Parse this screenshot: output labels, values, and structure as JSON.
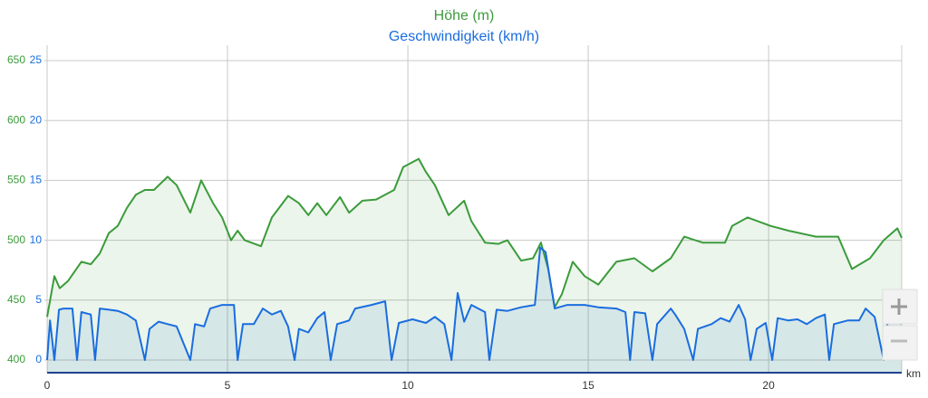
{
  "chart_data": {
    "type": "line",
    "x_label": "km",
    "xlim": [
      0,
      23.69
    ],
    "xticks": [
      0,
      5,
      10,
      15,
      20
    ],
    "ylim": [
      400,
      650
    ],
    "yticks": [
      400,
      450,
      500,
      550,
      600,
      650
    ],
    "y2lim": [
      0,
      25
    ],
    "y2ticks": [
      0,
      5,
      10,
      15,
      20,
      25
    ],
    "grid": true,
    "series": [
      {
        "name": "Höhe (m)",
        "color": "#3b9b3b",
        "axis": "y",
        "x": [
          0,
          0.2,
          0.35,
          0.58,
          0.95,
          1.21,
          1.46,
          1.71,
          1.96,
          2.21,
          2.46,
          2.71,
          2.96,
          3.34,
          3.59,
          3.97,
          4.27,
          4.6,
          4.85,
          5.1,
          5.28,
          5.48,
          5.93,
          6.23,
          6.68,
          6.98,
          7.24,
          7.49,
          7.74,
          8.12,
          8.37,
          8.74,
          9.12,
          9.62,
          9.87,
          10.3,
          10.5,
          10.75,
          11.13,
          11.56,
          11.76,
          12.14,
          12.51,
          12.76,
          13.14,
          13.47,
          13.69,
          13.89,
          14.07,
          14.27,
          14.57,
          14.9,
          15.28,
          15.78,
          16.28,
          16.78,
          17.29,
          17.66,
          18.17,
          18.79,
          18.99,
          19.42,
          20.05,
          20.55,
          21.31,
          21.93,
          22.31,
          22.81,
          23.19,
          23.57,
          23.69
        ],
        "values": [
          436,
          470,
          460,
          466,
          482,
          480,
          489,
          506,
          512,
          527,
          538,
          542,
          542,
          553,
          546,
          523,
          550,
          531,
          519,
          500,
          508,
          500,
          495,
          519,
          537,
          531,
          521,
          531,
          521,
          536,
          523,
          533,
          534,
          542,
          561,
          568,
          557,
          546,
          521,
          533,
          516,
          498,
          497,
          500,
          483,
          485,
          498,
          476,
          444,
          455,
          482,
          470,
          463,
          482,
          485,
          474,
          485,
          503,
          498,
          498,
          512,
          519,
          512,
          508,
          503,
          503,
          476,
          485,
          500,
          510,
          502
        ]
      },
      {
        "name": "Geschwindigkeit (km/h)",
        "color": "#1a6ddf",
        "axis": "y2",
        "x": [
          0,
          0.08,
          0.2,
          0.33,
          0.45,
          0.7,
          0.83,
          0.95,
          1.21,
          1.33,
          1.46,
          1.71,
          1.96,
          2.21,
          2.46,
          2.71,
          2.84,
          3.09,
          3.34,
          3.59,
          3.97,
          4.1,
          4.35,
          4.52,
          4.85,
          5.18,
          5.28,
          5.43,
          5.73,
          5.98,
          6.23,
          6.48,
          6.68,
          6.86,
          6.98,
          7.24,
          7.49,
          7.69,
          7.86,
          8.04,
          8.37,
          8.54,
          8.99,
          9.37,
          9.55,
          9.75,
          10.13,
          10.5,
          10.75,
          11.01,
          11.21,
          11.38,
          11.56,
          11.76,
          12.14,
          12.26,
          12.46,
          12.76,
          13.14,
          13.52,
          13.67,
          13.82,
          14.07,
          14.42,
          14.9,
          15.28,
          15.78,
          16.03,
          16.16,
          16.28,
          16.58,
          16.78,
          16.91,
          17.29,
          17.41,
          17.66,
          17.91,
          18.04,
          18.42,
          18.67,
          18.92,
          19.17,
          19.35,
          19.5,
          19.67,
          19.92,
          20.1,
          20.25,
          20.55,
          20.8,
          21.06,
          21.31,
          21.56,
          21.68,
          21.81,
          22.19,
          22.51,
          22.69,
          22.94,
          23.19,
          23.32,
          23.44,
          23.57,
          23.69
        ],
        "values": [
          0,
          3.3,
          0,
          4.2,
          4.3,
          4.3,
          0,
          4.0,
          3.8,
          0,
          4.3,
          4.2,
          4.1,
          3.8,
          3.3,
          0,
          2.6,
          3.2,
          3.0,
          2.8,
          0,
          3.0,
          2.8,
          4.3,
          4.6,
          4.6,
          0,
          3.0,
          3.0,
          4.3,
          3.8,
          4.1,
          2.8,
          0,
          2.6,
          2.3,
          3.5,
          4.0,
          0,
          3.0,
          3.3,
          4.3,
          4.6,
          4.9,
          0,
          3.1,
          3.4,
          3.1,
          3.6,
          3.0,
          0,
          5.6,
          3.2,
          4.6,
          4.0,
          0,
          4.2,
          4.1,
          4.4,
          4.6,
          9.4,
          9.0,
          4.3,
          4.6,
          4.6,
          4.4,
          4.3,
          4.0,
          0,
          4.0,
          3.9,
          0,
          3.0,
          4.3,
          3.8,
          2.6,
          0,
          2.6,
          3.0,
          3.5,
          3.2,
          4.6,
          3.4,
          0,
          2.6,
          3.1,
          0,
          3.5,
          3.3,
          3.4,
          3.0,
          3.5,
          3.8,
          0,
          3.0,
          3.3,
          3.3,
          4.3,
          3.6,
          0,
          3.8,
          5.2,
          3.2,
          3.0
        ]
      }
    ]
  }
}
